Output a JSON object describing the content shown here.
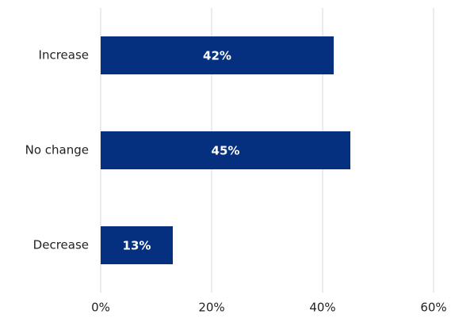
{
  "chart_data": {
    "type": "hbar",
    "categories": [
      "Increase",
      "No change",
      "Decrease"
    ],
    "values": [
      42,
      45,
      13
    ],
    "value_labels": [
      "42%",
      "45%",
      "13%"
    ],
    "color": "#05307f",
    "xlim": [
      0,
      60
    ],
    "xticks": [
      {
        "value": 0,
        "label": "0%"
      },
      {
        "value": 20,
        "label": "20%"
      },
      {
        "value": 40,
        "label": "40%"
      },
      {
        "value": 60,
        "label": "60%"
      }
    ],
    "grid": true
  }
}
